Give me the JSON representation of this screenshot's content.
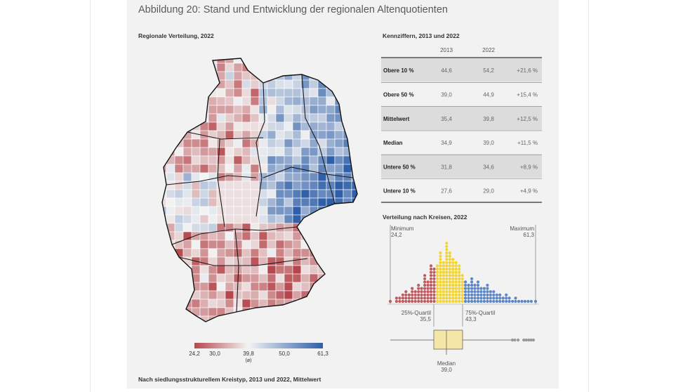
{
  "figure": {
    "title": "Abbildung 20: Stand und Entwicklung der regionalen Altenquotienten",
    "map_subtitle": "Regionale Verteilung, 2022",
    "table_subtitle": "Kennziffern, 2013 und 2022",
    "dist_subtitle": "Verteilung nach Kreisen, 2022",
    "bottom_subtitle": "Nach siedlungsstrukturellem Kreistyp, 2013 und 2022, Mittelwert"
  },
  "colors": {
    "low": "#b5474c",
    "mid": "#f3f3f3",
    "high": "#2f5fa8",
    "yellow": "#f2d432",
    "blue_dot": "#5c86c6",
    "red_dot": "#c05a61"
  },
  "chart_data": [
    {
      "type": "table",
      "title": "Kennziffern, 2013 und 2022",
      "columns": [
        "2013",
        "2022",
        ""
      ],
      "rows": [
        {
          "label": "Obere 10 %",
          "v2013": "44,6",
          "v2022": "54,2",
          "change": "+21,6 %",
          "shaded": true
        },
        {
          "label": "Obere 50 %",
          "v2013": "39,0",
          "v2022": "44,9",
          "change": "+15,4 %",
          "shaded": false
        },
        {
          "label": "Mittelwert",
          "v2013": "35,4",
          "v2022": "39,8",
          "change": "+12,5 %",
          "shaded": true
        },
        {
          "label": "Median",
          "v2013": "34,9",
          "v2022": "39,0",
          "change": "+11,5 %",
          "shaded": false
        },
        {
          "label": "Untere 50 %",
          "v2013": "31,8",
          "v2022": "34,6",
          "change": "+8,9 %",
          "shaded": true
        },
        {
          "label": "Untere 10 %",
          "v2013": "27,6",
          "v2022": "29,0",
          "change": "+4,9 %",
          "shaded": false
        }
      ]
    },
    {
      "type": "scatter",
      "title": "Verteilung nach Kreisen, 2022",
      "xlim": [
        24.2,
        61.3
      ],
      "stats": {
        "minimum": {
          "label": "Minimum",
          "value": "24,2"
        },
        "maximum": {
          "label": "Maximum",
          "value": "61,3"
        },
        "q25": {
          "label": "25%-Quartil",
          "value": "35,5"
        },
        "q75": {
          "label": "75%-Quartil",
          "value": "43,3"
        },
        "median": {
          "label": "Median",
          "value": "39,0"
        }
      },
      "bins": [
        {
          "x": 24.2,
          "n": 1
        },
        {
          "x": 25.0,
          "n": 0
        },
        {
          "x": 25.8,
          "n": 2
        },
        {
          "x": 26.6,
          "n": 2
        },
        {
          "x": 27.4,
          "n": 3
        },
        {
          "x": 28.2,
          "n": 4
        },
        {
          "x": 29.0,
          "n": 3
        },
        {
          "x": 29.8,
          "n": 5
        },
        {
          "x": 30.6,
          "n": 4
        },
        {
          "x": 31.4,
          "n": 6
        },
        {
          "x": 32.2,
          "n": 5
        },
        {
          "x": 33.0,
          "n": 9
        },
        {
          "x": 33.8,
          "n": 7
        },
        {
          "x": 34.6,
          "n": 12
        },
        {
          "x": 35.4,
          "n": 11
        },
        {
          "x": 36.2,
          "n": 12
        },
        {
          "x": 37.0,
          "n": 16
        },
        {
          "x": 37.8,
          "n": 13
        },
        {
          "x": 38.6,
          "n": 19
        },
        {
          "x": 39.4,
          "n": 16
        },
        {
          "x": 40.2,
          "n": 14
        },
        {
          "x": 41.0,
          "n": 13
        },
        {
          "x": 41.8,
          "n": 12
        },
        {
          "x": 42.6,
          "n": 9
        },
        {
          "x": 43.4,
          "n": 7
        },
        {
          "x": 44.2,
          "n": 6
        },
        {
          "x": 45.0,
          "n": 8
        },
        {
          "x": 45.8,
          "n": 6
        },
        {
          "x": 46.6,
          "n": 7
        },
        {
          "x": 47.4,
          "n": 5
        },
        {
          "x": 48.2,
          "n": 5
        },
        {
          "x": 49.0,
          "n": 6
        },
        {
          "x": 49.8,
          "n": 4
        },
        {
          "x": 50.6,
          "n": 4
        },
        {
          "x": 51.4,
          "n": 3
        },
        {
          "x": 52.2,
          "n": 3
        },
        {
          "x": 53.0,
          "n": 2
        },
        {
          "x": 53.8,
          "n": 3
        },
        {
          "x": 54.6,
          "n": 2
        },
        {
          "x": 55.4,
          "n": 1
        },
        {
          "x": 56.2,
          "n": 2
        },
        {
          "x": 57.0,
          "n": 1
        },
        {
          "x": 57.8,
          "n": 1
        },
        {
          "x": 58.6,
          "n": 1
        },
        {
          "x": 59.4,
          "n": 1
        },
        {
          "x": 60.2,
          "n": 1
        },
        {
          "x": 61.3,
          "n": 1
        }
      ],
      "outliers": [
        54.2,
        54.8,
        55.6,
        57.0,
        57.6,
        58.2,
        58.8,
        59.4
      ]
    },
    {
      "type": "heatmap",
      "title": "Regionale Verteilung, 2022",
      "legend_ticks": [
        "24,2",
        "30,0",
        "39,8",
        "50,0",
        "61,3"
      ],
      "legend_mean_label": "(ø)",
      "range": [
        24.2,
        61.3
      ]
    }
  ]
}
